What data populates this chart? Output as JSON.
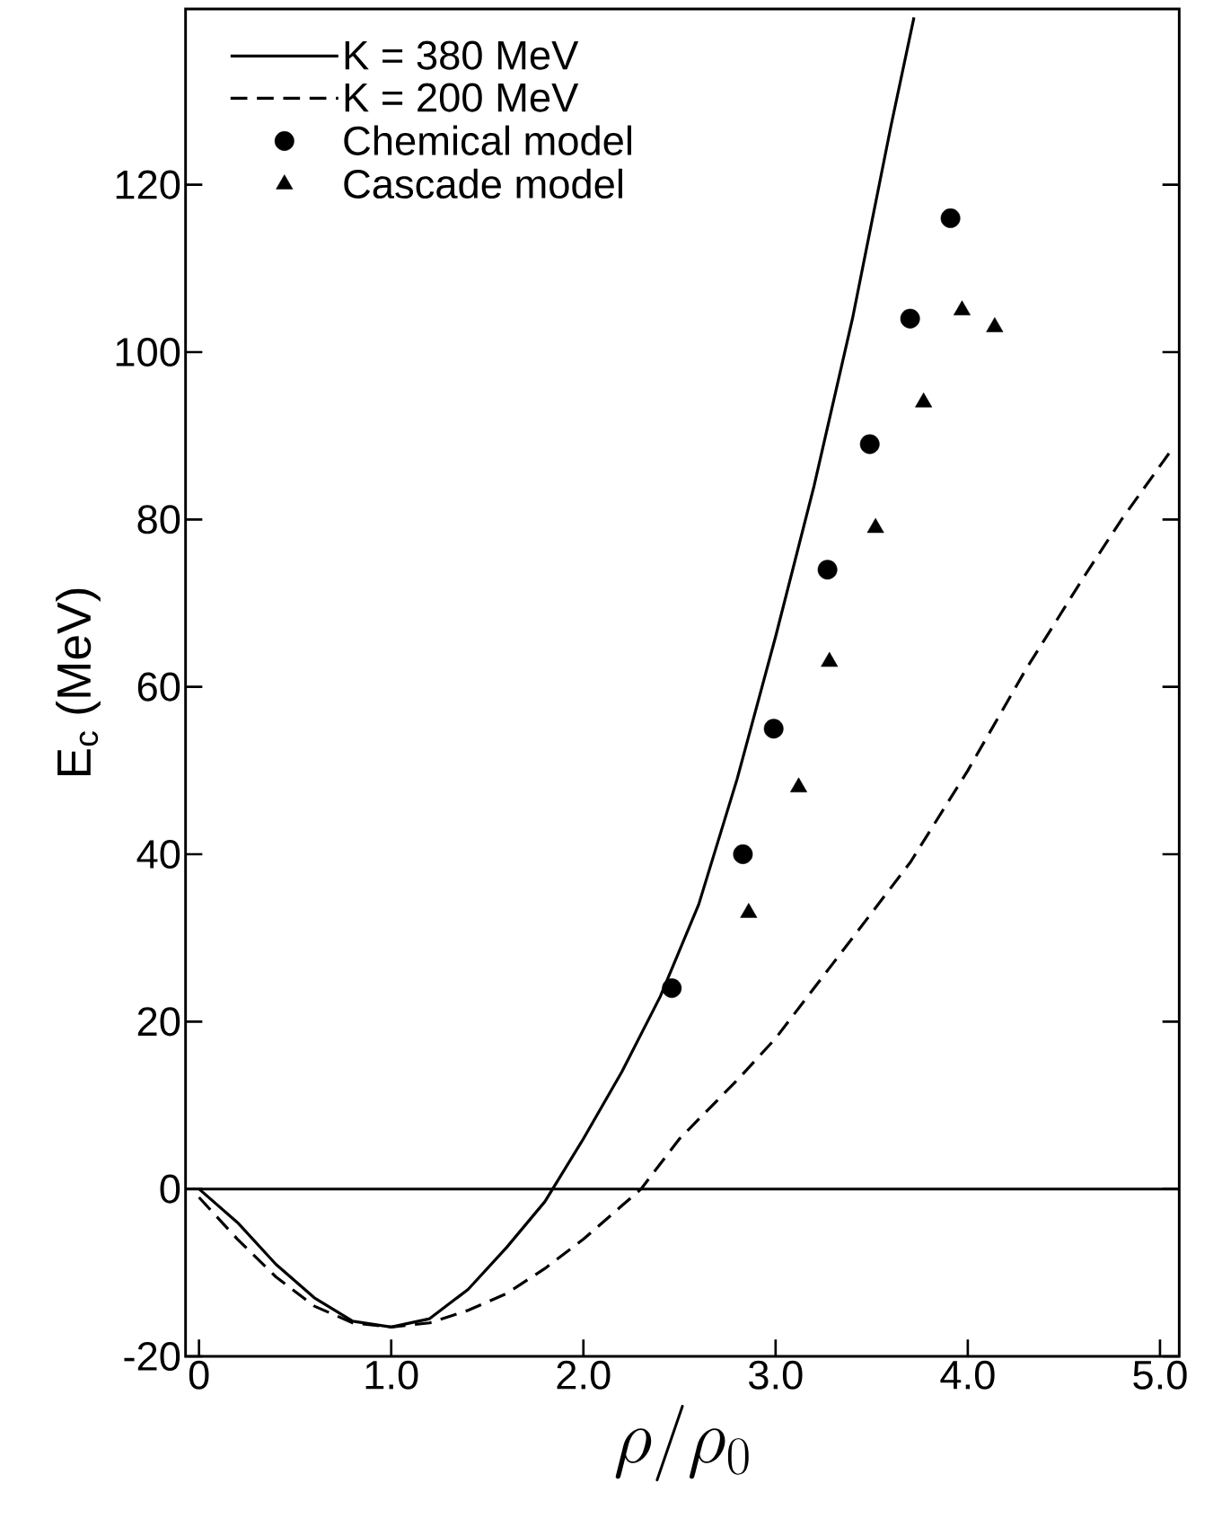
{
  "chart_data": {
    "type": "line",
    "xlabel": "\\rho/\\rho_0",
    "ylabel": "E$_{c}$ (MeV)",
    "xlim": [
      -0.07,
      5.1
    ],
    "ylim": [
      -20,
      141
    ],
    "xticks": [
      0,
      {
        "value": 1,
        "label": "1.0"
      },
      {
        "value": 2,
        "label": "2.0"
      },
      {
        "value": 3,
        "label": "3.0"
      },
      {
        "value": 4,
        "label": "4.0"
      },
      {
        "value": 5,
        "label": "5.0"
      }
    ],
    "yticks": [
      -20,
      0,
      20,
      40,
      60,
      80,
      100,
      120
    ],
    "grid": false,
    "legend": "top left",
    "ref_lines": [
      {
        "axis": "y",
        "value": 0,
        "color": "#000000",
        "line_style": "solid"
      }
    ],
    "series": [
      {
        "name": "K = 380 MeV",
        "color": "#000000",
        "line_style": "solid",
        "marker": "none",
        "x": [
          0,
          0.2,
          0.4,
          0.6,
          0.8,
          1.0,
          1.2,
          1.4,
          1.6,
          1.8,
          2.0,
          2.2,
          2.4,
          2.6,
          2.8,
          3.0,
          3.2,
          3.4,
          3.6,
          3.72
        ],
        "values": [
          0,
          -4,
          -9,
          -13,
          -15.8,
          -16.5,
          -15.5,
          -12,
          -7,
          -1.5,
          6,
          14,
          23,
          34,
          49,
          66,
          84,
          104,
          127,
          140
        ]
      },
      {
        "name": "K = 200 MeV",
        "color": "#000000",
        "line_style": "dashed",
        "marker": "none",
        "x": [
          0,
          0.2,
          0.4,
          0.6,
          0.8,
          1.0,
          1.2,
          1.4,
          1.6,
          1.8,
          2.0,
          2.2,
          2.3,
          2.5,
          2.8,
          3.0,
          3.3,
          3.5,
          3.7,
          4.0,
          4.3,
          4.6,
          4.8,
          5.05
        ],
        "values": [
          -1,
          -6,
          -10.5,
          -14,
          -16,
          -16.5,
          -16,
          -14.5,
          -12.5,
          -9.5,
          -6,
          -2,
          0,
          6,
          13,
          18,
          27,
          33,
          39,
          50,
          62,
          73,
          80,
          88
        ]
      },
      {
        "name": "Chemical model",
        "type": "scatter",
        "color": "#000000",
        "marker": "circle",
        "x": [
          2.46,
          2.83,
          2.99,
          3.27,
          3.49,
          3.7,
          3.91
        ],
        "values": [
          24,
          40,
          55,
          74,
          89,
          104,
          116
        ]
      },
      {
        "name": "Cascade model",
        "type": "scatter",
        "color": "#000000",
        "marker": "triangle",
        "x": [
          2.86,
          3.12,
          3.28,
          3.52,
          3.77,
          3.97,
          4.14
        ],
        "values": [
          33,
          48,
          63,
          79,
          94,
          105,
          103
        ]
      }
    ]
  }
}
